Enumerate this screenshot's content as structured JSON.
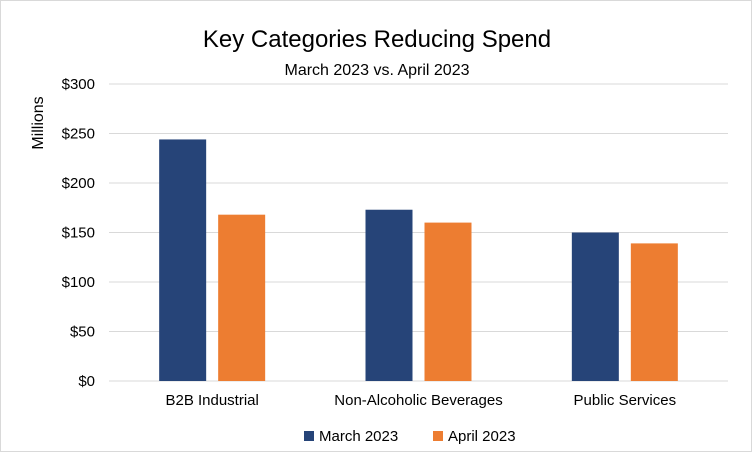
{
  "chart_data": {
    "type": "bar",
    "title": "Key Categories Reducing Spend",
    "subtitle": "March 2023 vs. April 2023",
    "xlabel": "",
    "ylabel": "Millions",
    "categories": [
      "B2B Industrial",
      "Non-Alcoholic Beverages",
      "Public Services"
    ],
    "series": [
      {
        "name": "March 2023",
        "color": "#264478",
        "values": [
          244,
          173,
          150
        ]
      },
      {
        "name": "April 2023",
        "color": "#ED7D31",
        "values": [
          168,
          160,
          139
        ]
      }
    ],
    "ylim": [
      0,
      300
    ],
    "yticks": [
      0,
      50,
      100,
      150,
      200,
      250,
      300
    ],
    "ytick_labels": [
      "$0",
      "$50",
      "$100",
      "$150",
      "$200",
      "$250",
      "$300"
    ],
    "grid": true,
    "legend_position": "bottom"
  }
}
